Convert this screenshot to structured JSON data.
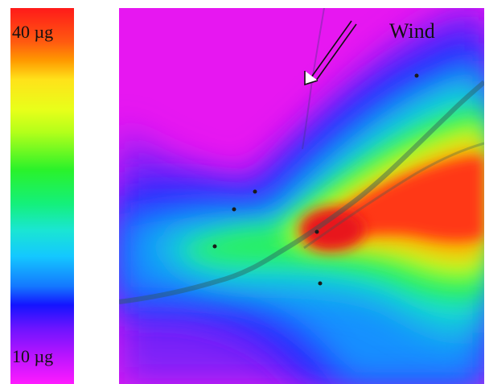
{
  "legend": {
    "max_label": "40 µg",
    "min_label": "10 µg",
    "max_value": 40,
    "min_value": 10,
    "colors": [
      "#ff1a1a",
      "#ff9a00",
      "#ffe21a",
      "#2af22a",
      "#1ae6d2",
      "#1478ff",
      "#1414ff",
      "#ff1aff"
    ]
  },
  "map": {
    "wind_label": "Wind",
    "background_color": "#f01af0",
    "hotspot_color": "#e61a1a",
    "monitoring_station_count": 6
  }
}
